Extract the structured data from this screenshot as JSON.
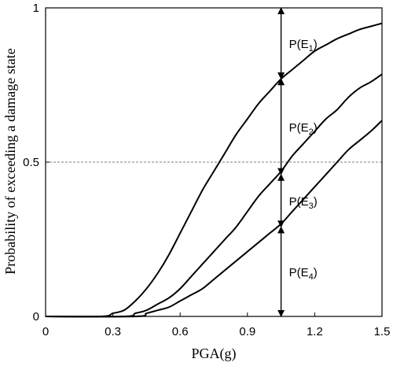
{
  "chart_data": {
    "type": "line",
    "title": "",
    "xlabel": "PGA(g)",
    "ylabel": "Probability of exceeding a damage state",
    "xlim": [
      0,
      1.5
    ],
    "ylim": [
      0,
      1
    ],
    "x_ticks": [
      "0",
      "0.3",
      "0.6",
      "0.9",
      "1.2",
      "1.5"
    ],
    "y_ticks": [
      "0",
      "0.5",
      "1"
    ],
    "reference_line": {
      "y": 0.5,
      "style": "dashed"
    },
    "grid": false,
    "legend": "none",
    "series": [
      {
        "x": [
          0,
          0.25,
          0.3,
          0.35,
          0.4,
          0.45,
          0.5,
          0.55,
          0.6,
          0.65,
          0.7,
          0.75,
          0.8,
          0.85,
          0.9,
          0.95,
          1.0,
          1.05,
          1.1,
          1.15,
          1.2,
          1.25,
          1.3,
          1.35,
          1.4,
          1.45,
          1.5
        ],
        "values": [
          0,
          0.0,
          0.01,
          0.02,
          0.05,
          0.09,
          0.14,
          0.2,
          0.27,
          0.34,
          0.41,
          0.47,
          0.53,
          0.59,
          0.64,
          0.69,
          0.73,
          0.77,
          0.8,
          0.83,
          0.86,
          0.88,
          0.9,
          0.915,
          0.93,
          0.94,
          0.95
        ]
      },
      {
        "x": [
          0,
          0.35,
          0.4,
          0.45,
          0.5,
          0.55,
          0.6,
          0.65,
          0.7,
          0.75,
          0.8,
          0.85,
          0.9,
          0.95,
          1.0,
          1.05,
          1.1,
          1.15,
          1.2,
          1.25,
          1.3,
          1.35,
          1.4,
          1.45,
          1.5
        ],
        "values": [
          0,
          0.0,
          0.01,
          0.02,
          0.04,
          0.06,
          0.09,
          0.13,
          0.17,
          0.21,
          0.25,
          0.29,
          0.34,
          0.39,
          0.43,
          0.47,
          0.52,
          0.56,
          0.6,
          0.64,
          0.67,
          0.71,
          0.74,
          0.76,
          0.785
        ]
      },
      {
        "x": [
          0,
          0.4,
          0.45,
          0.5,
          0.55,
          0.6,
          0.65,
          0.7,
          0.75,
          0.8,
          0.85,
          0.9,
          0.95,
          1.0,
          1.05,
          1.1,
          1.15,
          1.2,
          1.25,
          1.3,
          1.35,
          1.4,
          1.45,
          1.5
        ],
        "values": [
          0,
          0.0,
          0.01,
          0.02,
          0.03,
          0.05,
          0.07,
          0.09,
          0.12,
          0.15,
          0.18,
          0.21,
          0.24,
          0.27,
          0.3,
          0.34,
          0.38,
          0.42,
          0.46,
          0.5,
          0.54,
          0.57,
          0.6,
          0.635
        ]
      }
    ],
    "annotations": {
      "x": 1.05,
      "arrow_levels": [
        1.0,
        0.77,
        0.46,
        0.29,
        0.0
      ],
      "labels": [
        {
          "prefix": "P(E",
          "sub": "1",
          "suffix": ")"
        },
        {
          "prefix": "P(E",
          "sub": "2",
          "suffix": ")"
        },
        {
          "prefix": "P(E",
          "sub": "3",
          "suffix": ")"
        },
        {
          "prefix": "P(E",
          "sub": "4",
          "suffix": ")"
        }
      ]
    }
  }
}
